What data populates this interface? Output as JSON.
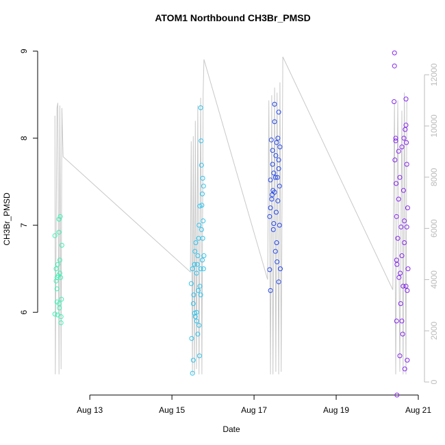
{
  "chart_data": {
    "type": "scatter",
    "title": "ATOM1 Northbound CH3Br_PMSD",
    "xlabel": "Date",
    "ylabel": "CH3Br_PMSD",
    "xlim": [
      11.73,
      21.15
    ],
    "xticks": [
      {
        "value": 13,
        "label": "Aug 13"
      },
      {
        "value": 15,
        "label": "Aug 15"
      },
      {
        "value": 17,
        "label": "Aug 17"
      },
      {
        "value": 19,
        "label": "Aug 19"
      },
      {
        "value": 21,
        "label": "Aug 21"
      }
    ],
    "ylim": [
      5.05,
      9.1
    ],
    "yticks": [
      6,
      7,
      8,
      9
    ],
    "y2lim": [
      -508,
      13262
    ],
    "y2ticks": [
      0,
      2000,
      4000,
      6000,
      8000,
      10000,
      12000
    ],
    "y2color": "#bbbbbb",
    "series": [
      {
        "color": "#c8c8c8",
        "axis": "y2",
        "x": [
          12.15,
          12.16,
          12.2,
          12.22,
          12.25,
          12.27,
          12.3,
          12.32,
          12.35,
          15.45,
          15.47,
          15.5,
          15.52,
          15.55,
          15.57,
          15.6,
          15.63,
          15.66,
          15.7,
          15.73,
          15.76,
          15.78,
          17.33,
          17.36,
          17.4,
          17.43,
          17.46,
          17.5,
          17.53,
          17.56,
          17.6,
          17.63,
          17.66,
          17.7,
          20.38,
          20.42,
          20.45,
          20.5,
          20.55,
          20.6,
          20.63,
          20.66,
          20.7,
          20.72
        ],
        "values": [
          10400,
          300,
          10700,
          10900,
          300,
          10800,
          500,
          10700,
          8800,
          4300,
          9400,
          300,
          9600,
          300,
          10200,
          500,
          10800,
          300,
          11100,
          300,
          11200,
          12600,
          4000,
          11000,
          300,
          11200,
          300,
          11500,
          400,
          11300,
          300,
          11700,
          400,
          12700,
          3600,
          10900,
          300,
          11000,
          400,
          10600,
          300,
          11300,
          300,
          11000
        ]
      },
      {
        "color": "#3cf0b4",
        "x": [
          12.15,
          12.2,
          12.18,
          12.22,
          12.25,
          12.28,
          12.2,
          12.22,
          12.25,
          12.27,
          12.3,
          12.3,
          12.31,
          12.32,
          12.25,
          12.2,
          12.23,
          12.27,
          12.29,
          12.15,
          12.18,
          12.26
        ],
        "values": [
          6.88,
          6.4,
          6.36,
          6.55,
          7.07,
          7.1,
          6.12,
          5.97,
          6.1,
          6.6,
          5.95,
          5.88,
          6.15,
          6.77,
          6.92,
          6.27,
          6.42,
          6.45,
          6.4,
          5.98,
          6.5,
          6.05
        ]
      },
      {
        "color": "#2ec4ee",
        "x": [
          15.47,
          15.48,
          15.5,
          15.5,
          15.52,
          15.53,
          15.55,
          15.55,
          15.57,
          15.58,
          15.6,
          15.6,
          15.62,
          15.63,
          15.63,
          15.65,
          15.66,
          15.67,
          15.68,
          15.68,
          15.7,
          15.7,
          15.71,
          15.72,
          15.72,
          15.74,
          15.74,
          15.75,
          15.76,
          15.77,
          15.77,
          15.78,
          15.52,
          15.56,
          15.6,
          15.64,
          15.66,
          15.7,
          15.73,
          15.75
        ],
        "values": [
          6.33,
          5.7,
          5.3,
          6.5,
          5.45,
          6.2,
          5.99,
          6.55,
          5.95,
          6.8,
          5.9,
          6.45,
          6.55,
          5.75,
          6.65,
          6.85,
          7.0,
          5.5,
          6.3,
          7.22,
          6.5,
          8.35,
          7.97,
          7.69,
          6.95,
          7.36,
          6.6,
          7.54,
          7.05,
          7.45,
          6.5,
          6.65,
          6.1,
          6.7,
          6.0,
          6.25,
          5.85,
          6.2,
          7.23,
          6.85
        ]
      },
      {
        "color": "#2448ee",
        "x": [
          17.38,
          17.38,
          17.4,
          17.4,
          17.42,
          17.43,
          17.45,
          17.45,
          17.47,
          17.48,
          17.5,
          17.5,
          17.5,
          17.52,
          17.53,
          17.54,
          17.55,
          17.55,
          17.57,
          17.58,
          17.6,
          17.6,
          17.6,
          17.62,
          17.62,
          17.63,
          17.64,
          17.4,
          17.44,
          17.48,
          17.52,
          17.56,
          17.6,
          17.58,
          17.46
        ],
        "values": [
          6.49,
          7.1,
          7.52,
          6.25,
          7.98,
          7.3,
          7.7,
          7.86,
          6.95,
          7.6,
          8.39,
          8.19,
          7.38,
          6.7,
          7.8,
          7.15,
          6.8,
          7.95,
          7.55,
          7.28,
          8.3,
          7.65,
          6.35,
          7.45,
          7.0,
          7.9,
          6.5,
          7.2,
          7.35,
          7.02,
          7.55,
          6.58,
          7.75,
          8.0,
          7.4
        ]
      },
      {
        "color": "#8424ee",
        "x": [
          20.42,
          20.42,
          20.41,
          20.45,
          20.45,
          20.43,
          20.46,
          20.47,
          20.48,
          20.47,
          20.48,
          20.5,
          20.52,
          20.53,
          20.55,
          20.55,
          20.57,
          20.58,
          20.6,
          20.6,
          20.62,
          20.63,
          20.64,
          20.65,
          20.66,
          20.67,
          20.68,
          20.7,
          20.7,
          20.71,
          20.72,
          20.72,
          20.73,
          20.74,
          20.75,
          20.47,
          20.52,
          20.56,
          20.6,
          20.66,
          20.7,
          20.73
        ],
        "values": [
          8.98,
          8.83,
          8.42,
          7.97,
          8.0,
          7.75,
          7.48,
          7.1,
          6.55,
          5.9,
          5.05,
          6.85,
          7.3,
          6.4,
          5.5,
          7.55,
          6.1,
          6.98,
          7.9,
          6.65,
          5.75,
          6.3,
          7.4,
          8.0,
          6.8,
          5.35,
          8.1,
          8.15,
          6.3,
          7.95,
          7.7,
          6.98,
          5.45,
          7.2,
          6.5,
          6.6,
          7.85,
          6.45,
          5.9,
          7.05,
          8.45,
          6.25
        ]
      }
    ]
  }
}
